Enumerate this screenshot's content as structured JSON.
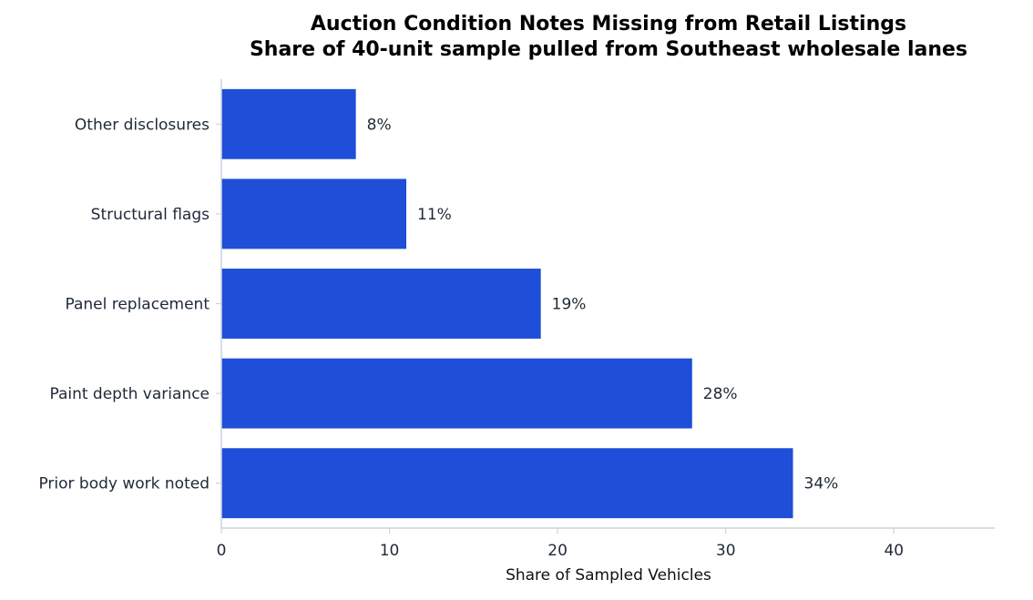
{
  "chart_data": {
    "type": "bar",
    "orientation": "horizontal",
    "title": "Auction Condition Notes Missing from Retail Listings",
    "subtitle": "Share of 40-unit sample pulled from Southeast wholesale lanes",
    "xlabel": "Share of Sampled Vehicles",
    "ylabel": "",
    "xlim": [
      0,
      46
    ],
    "xticks": [
      0,
      10,
      20,
      30,
      40
    ],
    "categories": [
      "Prior body work noted",
      "Paint depth variance",
      "Panel replacement",
      "Structural flags",
      "Other disclosures"
    ],
    "values": [
      34,
      28,
      19,
      11,
      8
    ],
    "value_labels": [
      "34%",
      "28%",
      "19%",
      "11%",
      "8%"
    ],
    "grid": false,
    "legend": "none",
    "colors": {
      "bar": "#1f4fd8",
      "axis": "#c8d4e0",
      "text": "#1f2937"
    }
  }
}
